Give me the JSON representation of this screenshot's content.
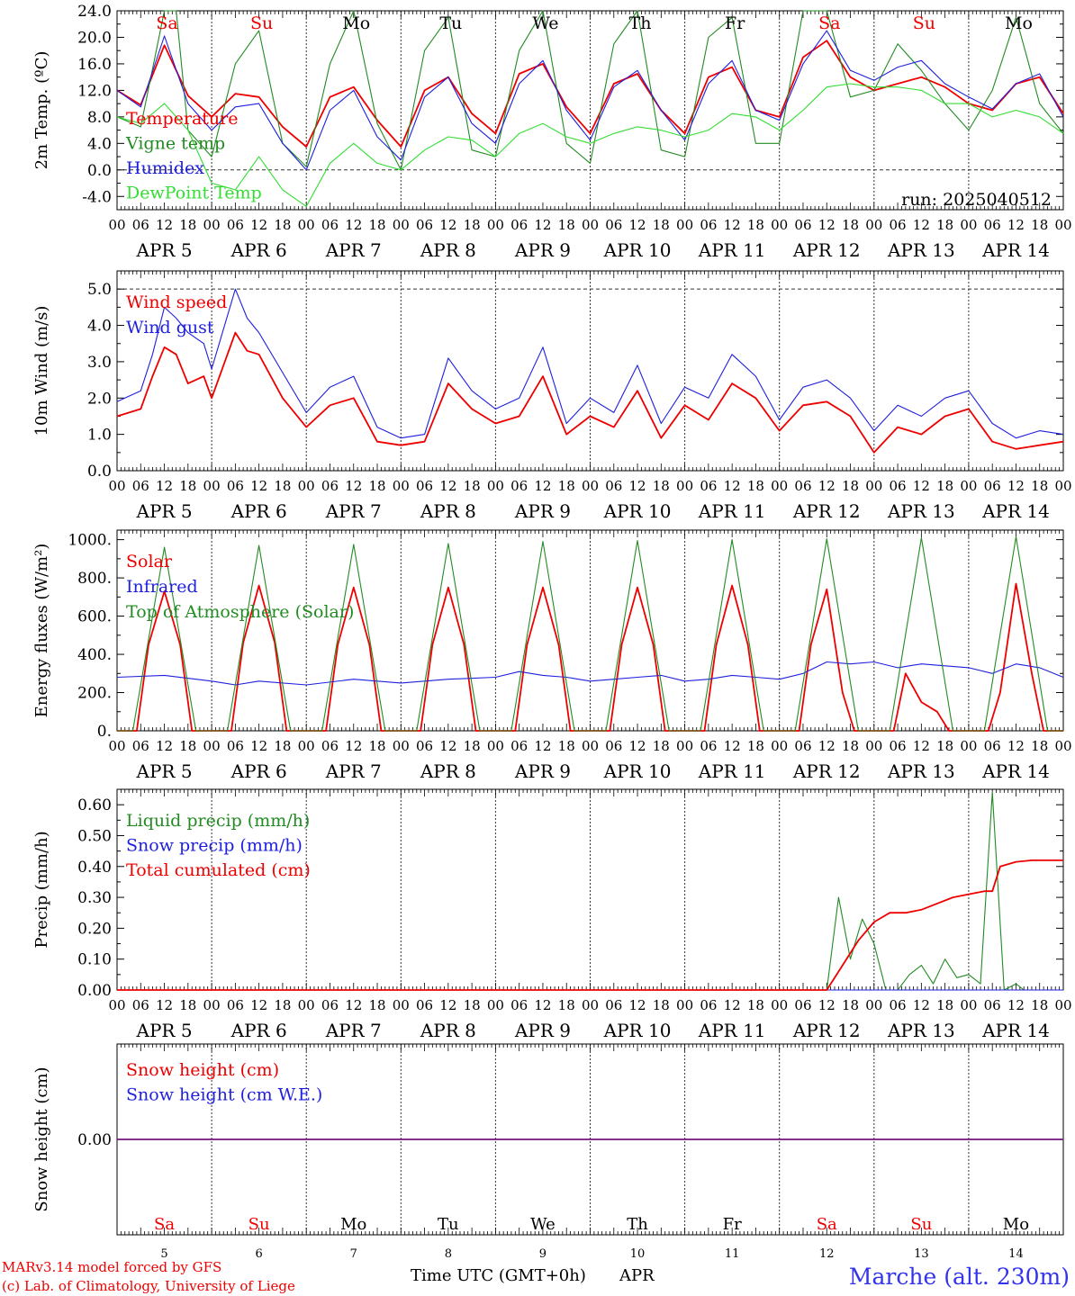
{
  "days": [
    "5",
    "6",
    "7",
    "8",
    "9",
    "10",
    "11",
    "12",
    "13",
    "14"
  ],
  "month": "APR",
  "hour_ticks": [
    "00",
    "06",
    "12",
    "18"
  ],
  "weekdays": [
    {
      "label": "Sa",
      "weekend": true
    },
    {
      "label": "Su",
      "weekend": true
    },
    {
      "label": "Mo",
      "weekend": false
    },
    {
      "label": "Tu",
      "weekend": false
    },
    {
      "label": "We",
      "weekend": false
    },
    {
      "label": "Th",
      "weekend": false
    },
    {
      "label": "Fr",
      "weekend": false
    },
    {
      "label": "Sa",
      "weekend": true
    },
    {
      "label": "Su",
      "weekend": true
    },
    {
      "label": "Mo",
      "weekend": false
    }
  ],
  "colors": {
    "red": "#ee0000",
    "green": "#228b22",
    "lime": "#33dd33",
    "blue": "#1f1fdd",
    "weekend": "#ee0000",
    "weekday": "#000000",
    "station": "#3333ee"
  },
  "footer": {
    "credit_line1": "MARv3.14 model forced by GFS",
    "credit_line2": "(c) Lab. of Climatology, University of Liege",
    "axis_title": "Time UTC (GMT+0h)",
    "month_label": "APR",
    "station": "Marche (alt. 230m)"
  },
  "chart_data": [
    {
      "type": "line",
      "ylabel": "2m Temp. (ºC)",
      "ylim": [
        -6,
        24
      ],
      "yticks": [
        "-4.0",
        "0.0",
        "4.0",
        "8.0",
        "12.0",
        "16.0",
        "20.0",
        "24.0"
      ],
      "ytick_values": [
        -4,
        0,
        4,
        8,
        12,
        16,
        20,
        24
      ],
      "reference_lines": [
        0
      ],
      "annotation": "run: 2025040512",
      "series": [
        {
          "name": "Temperature",
          "color": "red",
          "x": [
            0,
            6,
            12,
            18,
            24,
            30,
            36,
            42,
            48,
            54,
            60,
            66,
            72,
            78,
            84,
            90,
            96,
            102,
            108,
            114,
            120,
            126,
            132,
            138,
            144,
            150,
            156,
            162,
            168,
            174,
            180,
            186,
            192,
            198,
            204,
            210,
            216,
            222,
            228,
            234,
            240
          ],
          "y": [
            12,
            9.8,
            18.8,
            11.2,
            8,
            11.5,
            11,
            6.5,
            3.5,
            11,
            12.5,
            7.5,
            3.5,
            12,
            14,
            8.5,
            5.5,
            14.5,
            16,
            9.5,
            5.5,
            13,
            14.5,
            9,
            5.5,
            14,
            15.5,
            9,
            8,
            17,
            19.5,
            14,
            12,
            13,
            14,
            12.5,
            10,
            9,
            13,
            14,
            8.5
          ]
        },
        {
          "name": "Vigne temp",
          "color": "green",
          "x": [
            0,
            6,
            12,
            15,
            18,
            24,
            30,
            36,
            42,
            48,
            54,
            60,
            66,
            72,
            78,
            84,
            90,
            96,
            102,
            108,
            114,
            120,
            126,
            132,
            138,
            144,
            150,
            156,
            162,
            168,
            174,
            180,
            186,
            192,
            198,
            204,
            210,
            216,
            222,
            228,
            234,
            240
          ],
          "y": [
            8,
            6.5,
            24,
            24,
            6,
            2,
            16,
            21,
            4,
            0.5,
            16,
            24,
            7,
            0,
            18,
            23,
            3,
            2,
            18,
            24,
            4,
            1,
            19,
            24,
            3,
            2,
            20,
            23,
            4,
            4,
            24,
            24,
            11,
            12,
            19,
            15,
            10,
            6,
            12,
            23,
            10,
            5.5
          ]
        },
        {
          "name": "Humidex",
          "color": "blue",
          "x": [
            0,
            6,
            12,
            18,
            24,
            30,
            36,
            42,
            48,
            54,
            60,
            66,
            72,
            78,
            84,
            90,
            96,
            102,
            108,
            114,
            120,
            126,
            132,
            138,
            144,
            150,
            156,
            162,
            168,
            174,
            180,
            186,
            192,
            198,
            204,
            210,
            216,
            222,
            228,
            234,
            240
          ],
          "y": [
            12,
            9.5,
            20.2,
            10,
            6,
            9.5,
            10,
            4,
            0,
            9,
            12,
            5,
            1.5,
            11,
            14,
            7,
            4,
            13,
            16.5,
            9,
            4.5,
            12.5,
            15,
            9,
            4.5,
            13,
            16.5,
            9,
            7.5,
            16,
            21,
            15,
            13.5,
            15.5,
            16.5,
            13,
            11,
            9.2,
            13,
            14.5,
            8
          ]
        },
        {
          "name": "DewPoint Temp",
          "color": "lime",
          "x": [
            0,
            6,
            12,
            18,
            24,
            30,
            36,
            42,
            48,
            54,
            60,
            66,
            72,
            78,
            84,
            90,
            96,
            102,
            108,
            114,
            120,
            126,
            132,
            138,
            144,
            150,
            156,
            162,
            168,
            174,
            180,
            186,
            192,
            198,
            204,
            210,
            216,
            222,
            228,
            234,
            240
          ],
          "y": [
            8,
            7,
            10,
            6,
            -2,
            -3,
            2,
            -3,
            -5.5,
            1,
            4,
            1,
            0,
            3,
            5,
            4.5,
            2,
            5.5,
            7,
            5,
            4,
            5.5,
            6.5,
            6,
            5,
            6,
            8.5,
            8,
            6,
            9,
            12.5,
            13,
            12.5,
            12.5,
            12,
            10,
            10,
            8,
            9,
            8,
            5.5
          ]
        }
      ]
    },
    {
      "type": "line",
      "ylabel": "10m Wind (m/s)",
      "ylim": [
        0,
        5.5
      ],
      "yticks": [
        "0.0",
        "1.0",
        "2.0",
        "3.0",
        "4.0",
        "5.0"
      ],
      "ytick_values": [
        0,
        1,
        2,
        3,
        4,
        5
      ],
      "reference_lines": [
        5
      ],
      "series": [
        {
          "name": "Wind speed",
          "color": "red",
          "x": [
            0,
            6,
            9,
            12,
            15,
            18,
            22,
            24,
            30,
            33,
            36,
            42,
            48,
            54,
            60,
            66,
            72,
            78,
            84,
            90,
            96,
            102,
            108,
            114,
            120,
            126,
            132,
            138,
            144,
            150,
            156,
            162,
            168,
            174,
            180,
            186,
            192,
            198,
            204,
            210,
            216,
            222,
            228,
            234,
            240
          ],
          "y": [
            1.5,
            1.7,
            2.6,
            3.4,
            3.2,
            2.4,
            2.6,
            2,
            3.8,
            3.3,
            3.2,
            2,
            1.2,
            1.8,
            2,
            0.8,
            0.7,
            0.8,
            2.4,
            1.7,
            1.3,
            1.5,
            2.6,
            1,
            1.5,
            1.2,
            2.2,
            0.9,
            1.8,
            1.4,
            2.4,
            2,
            1.1,
            1.8,
            1.9,
            1.5,
            0.5,
            1.2,
            1,
            1.5,
            1.7,
            0.8,
            0.6,
            0.7,
            0.8
          ]
        },
        {
          "name": "Wind gust",
          "color": "blue",
          "x": [
            0,
            6,
            9,
            12,
            15,
            18,
            22,
            24,
            30,
            33,
            36,
            42,
            48,
            54,
            60,
            66,
            72,
            78,
            84,
            90,
            96,
            102,
            108,
            114,
            120,
            126,
            132,
            138,
            144,
            150,
            156,
            162,
            168,
            174,
            180,
            186,
            192,
            198,
            204,
            210,
            216,
            222,
            228,
            234,
            240
          ],
          "y": [
            1.9,
            2.2,
            3.2,
            4.5,
            4.2,
            3.8,
            3.5,
            2.8,
            5,
            4.2,
            3.8,
            2.7,
            1.6,
            2.3,
            2.6,
            1.2,
            0.9,
            1,
            3.1,
            2.2,
            1.7,
            2,
            3.4,
            1.3,
            2,
            1.6,
            2.9,
            1.3,
            2.3,
            2,
            3.2,
            2.6,
            1.4,
            2.3,
            2.5,
            2,
            1.1,
            1.8,
            1.5,
            2,
            2.2,
            1.3,
            0.9,
            1.1,
            1
          ]
        }
      ]
    },
    {
      "type": "line",
      "ylabel": "Energy fluxes (W/m²)",
      "ylim": [
        0,
        1050
      ],
      "yticks": [
        "0.",
        "200.",
        "400.",
        "600.",
        "800.",
        "1000."
      ],
      "ytick_values": [
        0,
        200,
        400,
        600,
        800,
        1000
      ],
      "reference_lines": [],
      "series": [
        {
          "name": "Solar",
          "color": "red",
          "x": [
            0,
            5,
            8,
            12,
            16,
            19,
            29,
            32,
            36,
            40,
            43,
            53,
            56,
            60,
            64,
            67,
            77,
            80,
            84,
            88,
            91,
            101,
            104,
            108,
            112,
            115,
            125,
            128,
            132,
            136,
            139,
            149,
            152,
            156,
            160,
            163,
            173,
            176,
            180,
            184,
            187,
            197,
            200,
            204,
            208,
            211,
            221,
            224,
            228,
            232,
            235,
            240
          ],
          "y": [
            0,
            0,
            450,
            730,
            450,
            0,
            0,
            460,
            760,
            460,
            0,
            0,
            450,
            750,
            450,
            0,
            0,
            450,
            750,
            450,
            0,
            0,
            450,
            750,
            450,
            0,
            0,
            450,
            750,
            450,
            0,
            0,
            450,
            760,
            450,
            0,
            0,
            450,
            740,
            200,
            0,
            0,
            300,
            150,
            100,
            0,
            0,
            200,
            770,
            300,
            0,
            0
          ]
        },
        {
          "name": "Infrared",
          "color": "blue",
          "x": [
            0,
            12,
            24,
            30,
            36,
            48,
            60,
            72,
            84,
            96,
            102,
            108,
            114,
            120,
            126,
            132,
            138,
            144,
            150,
            156,
            162,
            168,
            174,
            180,
            186,
            192,
            198,
            204,
            210,
            216,
            222,
            228,
            234,
            240
          ],
          "y": [
            280,
            290,
            260,
            240,
            260,
            240,
            270,
            250,
            270,
            280,
            310,
            290,
            280,
            260,
            270,
            280,
            290,
            260,
            270,
            290,
            280,
            270,
            300,
            360,
            350,
            360,
            330,
            350,
            340,
            330,
            300,
            350,
            330,
            280
          ]
        },
        {
          "name": "Top of Atmosphere (Solar)",
          "color": "green",
          "x": [
            0,
            4,
            12,
            20,
            28,
            36,
            44,
            52,
            60,
            68,
            76,
            84,
            92,
            100,
            108,
            116,
            124,
            132,
            140,
            148,
            156,
            164,
            172,
            180,
            188,
            196,
            204,
            212,
            220,
            228,
            236,
            240
          ],
          "y": [
            0,
            0,
            960,
            0,
            0,
            970,
            0,
            0,
            975,
            0,
            0,
            980,
            0,
            0,
            990,
            0,
            0,
            995,
            0,
            0,
            1000,
            0,
            0,
            1005,
            0,
            0,
            1010,
            0,
            0,
            1015,
            0,
            0
          ]
        }
      ]
    },
    {
      "type": "line",
      "ylabel": "Precip (mm/h)",
      "ylim": [
        0,
        0.65
      ],
      "yticks": [
        "0.00",
        "0.10",
        "0.20",
        "0.30",
        "0.40",
        "0.50",
        "0.60"
      ],
      "ytick_values": [
        0,
        0.1,
        0.2,
        0.3,
        0.4,
        0.5,
        0.6
      ],
      "reference_lines": [],
      "series": [
        {
          "name": "Liquid precip (mm/h)",
          "color": "green",
          "x": [
            0,
            180,
            183,
            186,
            189,
            192,
            195,
            198,
            201,
            204,
            207,
            210,
            213,
            216,
            219,
            222,
            225,
            228,
            230,
            232,
            234,
            236,
            238,
            240
          ],
          "y": [
            0,
            0,
            0.3,
            0.1,
            0.23,
            0.15,
            0,
            0,
            0.05,
            0.08,
            0.02,
            0.1,
            0.04,
            0.05,
            0.02,
            0.64,
            0,
            0.02,
            0,
            0,
            0,
            0,
            0,
            0
          ]
        },
        {
          "name": "Snow precip (mm/h)",
          "color": "blue",
          "x": [
            0,
            240
          ],
          "y": [
            0,
            0
          ]
        },
        {
          "name": "Total cumulated (cm)",
          "color": "red",
          "x": [
            0,
            180,
            184,
            188,
            192,
            196,
            200,
            204,
            208,
            212,
            216,
            220,
            222,
            224,
            228,
            232,
            236,
            240
          ],
          "y": [
            0,
            0,
            0.08,
            0.16,
            0.22,
            0.25,
            0.25,
            0.26,
            0.28,
            0.3,
            0.31,
            0.32,
            0.32,
            0.4,
            0.415,
            0.42,
            0.42,
            0.42
          ]
        }
      ]
    },
    {
      "type": "line",
      "ylabel": "Snow height (cm)",
      "ylim": [
        -1,
        1
      ],
      "yticks": [
        "0.00"
      ],
      "ytick_values": [
        0
      ],
      "reference_lines": [],
      "series": [
        {
          "name": "Snow height (cm)",
          "color": "red",
          "x": [
            0,
            240
          ],
          "y": [
            0,
            0
          ]
        },
        {
          "name": "Snow height (cm W.E.)",
          "color": "blue",
          "x": [
            0,
            240
          ],
          "y": [
            0,
            0
          ]
        }
      ]
    }
  ]
}
